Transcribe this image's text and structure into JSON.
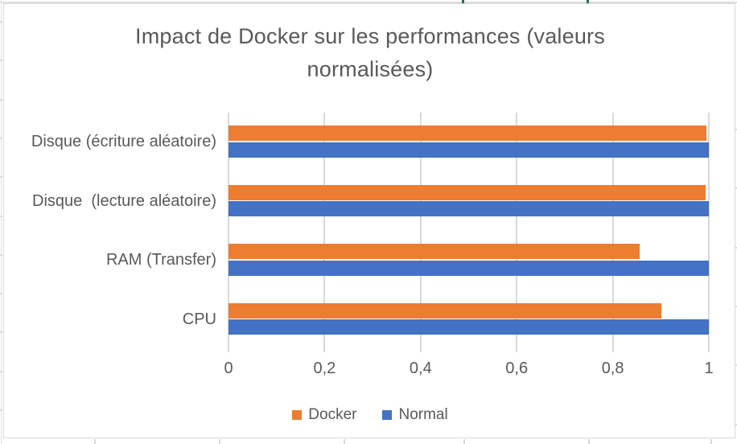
{
  "chart_data": {
    "type": "bar",
    "orientation": "horizontal",
    "title": "Impact de Docker sur les performances (valeurs normalisées)",
    "categories": [
      "Disque (écriture aléatoire)",
      "Disque  (lecture aléatoire)",
      "RAM (Transfer)",
      "CPU"
    ],
    "series": [
      {
        "name": "Docker",
        "color": "#ED7D31",
        "values": [
          0.995,
          0.993,
          0.856,
          0.902
        ]
      },
      {
        "name": "Normal",
        "color": "#4472C4",
        "values": [
          1,
          1,
          1,
          1
        ]
      }
    ],
    "xlim": [
      0,
      1
    ],
    "x_ticks": [
      {
        "value": 0,
        "label": "0"
      },
      {
        "value": 0.2,
        "label": "0,2"
      },
      {
        "value": 0.4,
        "label": "0,4"
      },
      {
        "value": 0.6,
        "label": "0,6"
      },
      {
        "value": 0.8,
        "label": "0,8"
      },
      {
        "value": 1,
        "label": "1"
      }
    ],
    "grid": "vertical",
    "legend_position": "bottom"
  },
  "colors": {
    "docker_orange": "#ED7D31",
    "normal_blue": "#4472C4",
    "gridline_gray": "#D9D9D9",
    "axis_text_gray": "#595959",
    "excel_green_tick": "#217346",
    "chart_border": "#D9D9D9"
  }
}
